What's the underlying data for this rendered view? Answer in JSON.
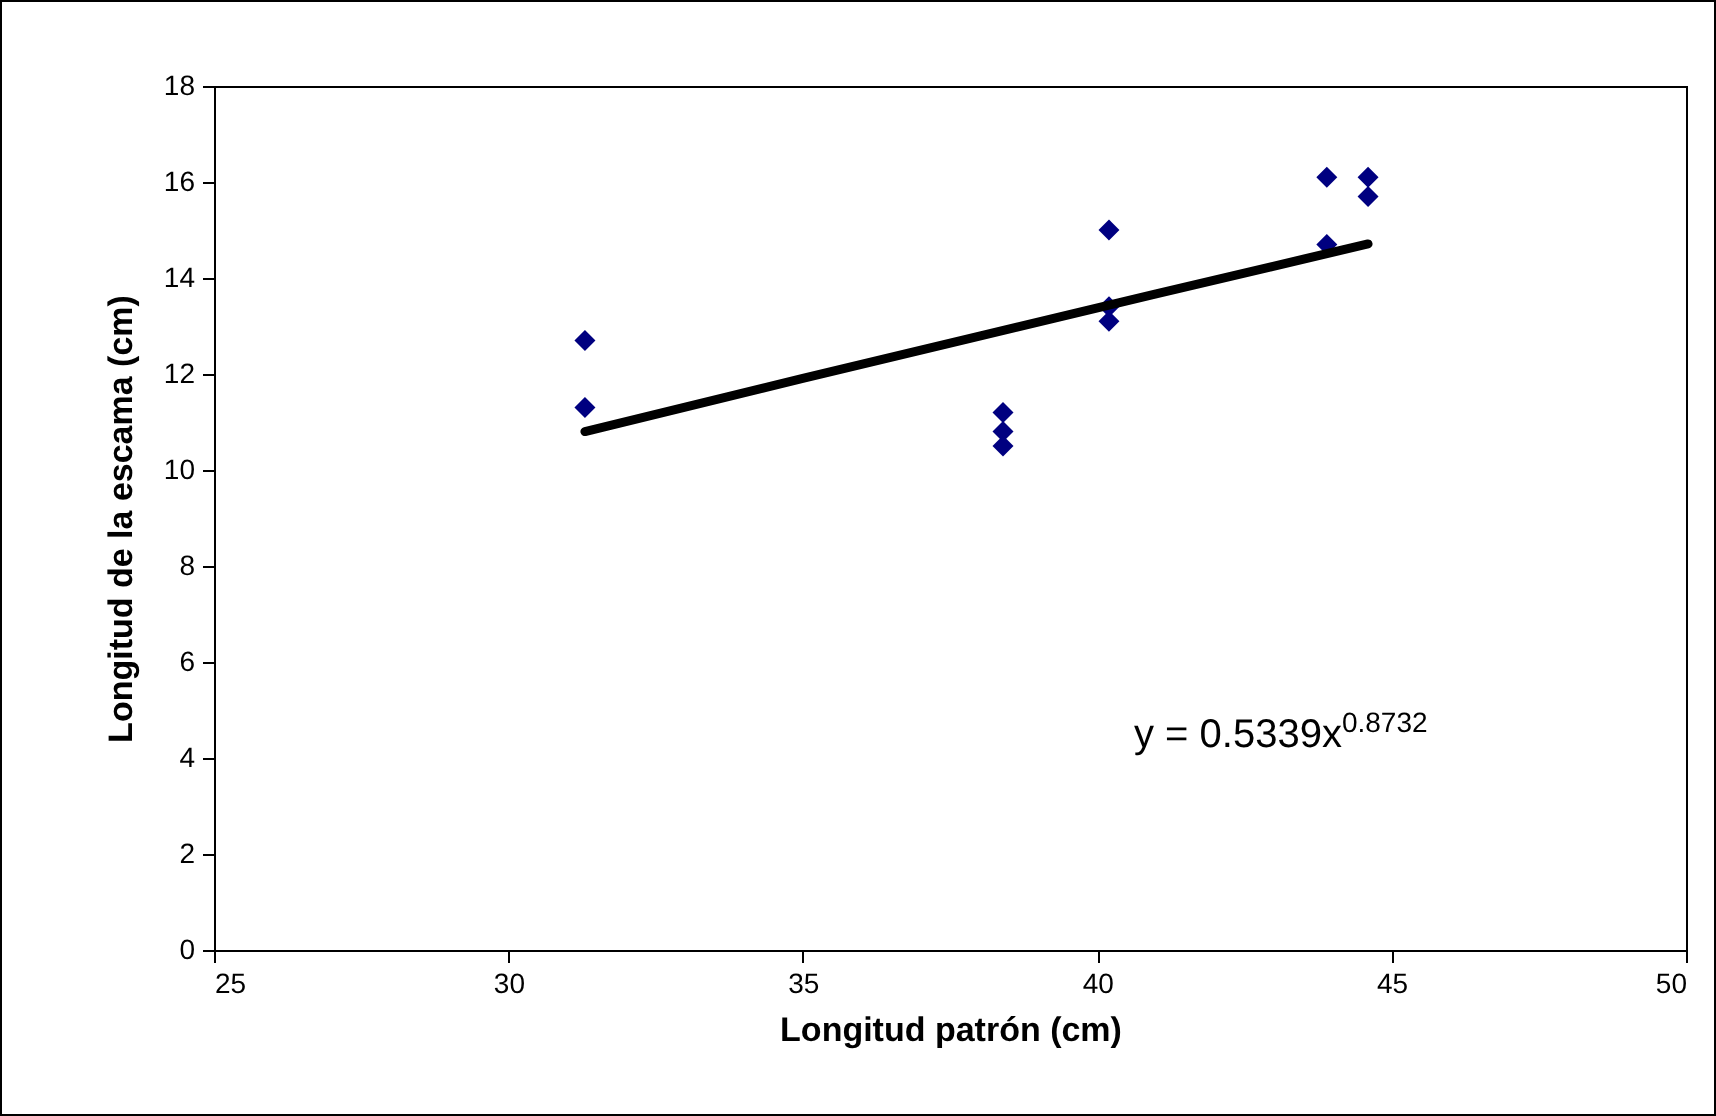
{
  "chart_data": {
    "type": "scatter",
    "xlabel": "Longitud patrón (cm)",
    "ylabel": "Longitud de la escama (cm)",
    "xlim": [
      25,
      50
    ],
    "xticks": [
      25,
      30,
      35,
      40,
      45,
      50
    ],
    "ylim": [
      0,
      18
    ],
    "yticks": [
      0,
      2,
      4,
      6,
      8,
      10,
      12,
      14,
      16,
      18
    ],
    "grid": false,
    "series": [
      {
        "marker": "diamond",
        "color": "#000080",
        "x": [
          31.3,
          31.3,
          38.4,
          38.4,
          38.4,
          40.2,
          40.2,
          40.2,
          43.9,
          43.9,
          44.6,
          44.6
        ],
        "values": [
          12.7,
          11.3,
          11.2,
          10.8,
          10.5,
          15.0,
          13.4,
          13.1,
          16.1,
          14.7,
          16.1,
          15.7
        ]
      },
      {
        "type": "line",
        "marker": "none",
        "color": "#000000",
        "x": [
          31.3,
          35,
          38,
          41,
          44.6
        ],
        "values": [
          10.8,
          11.91,
          12.79,
          13.67,
          14.71
        ]
      }
    ],
    "annotations": [
      "y = 0.5339x$^{0.8732}$"
    ]
  }
}
